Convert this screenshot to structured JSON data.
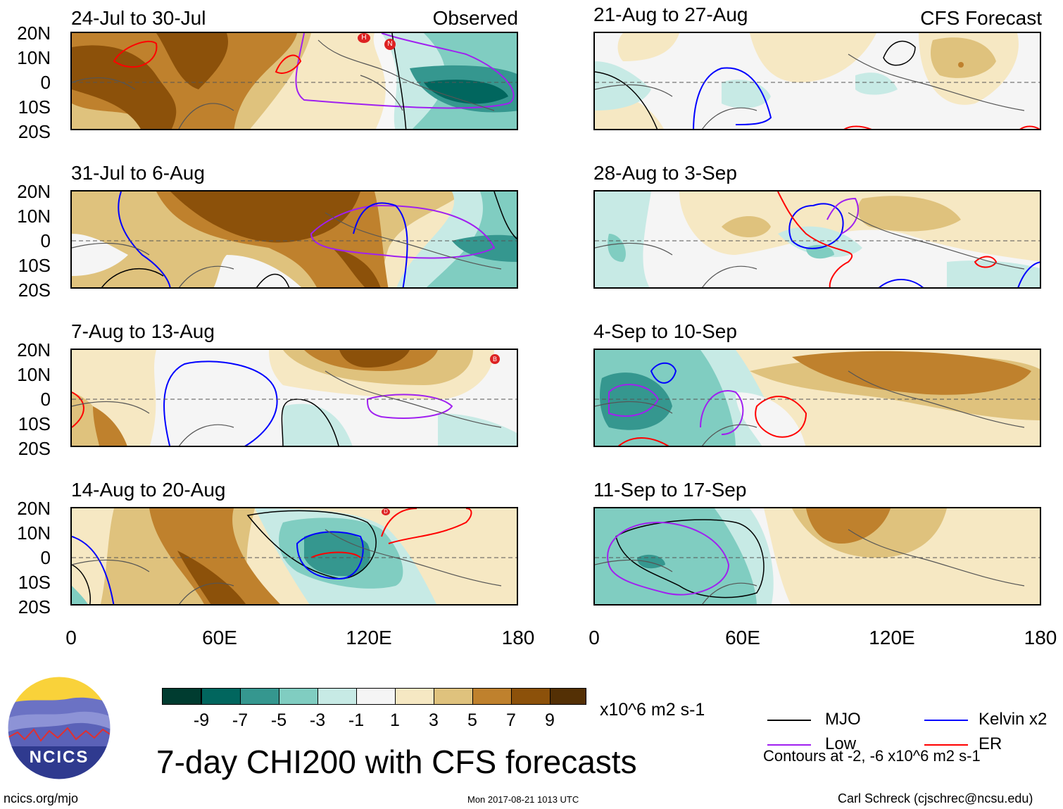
{
  "left_header": "Observed",
  "right_header": "CFS Forecast",
  "colors": {
    "c_m9": "#003c30",
    "c_m7": "#01665e",
    "c_m5": "#35978f",
    "c_m3": "#80cdc1",
    "c_m1": "#c7eae5",
    "c_0": "#f5f5f5",
    "c_1": "#f6e8c3",
    "c_3": "#dfc27d",
    "c_5": "#bf812d",
    "c_7": "#8c510a",
    "c_9": "#543005",
    "mjo": "#000000",
    "kelvin": "#0000ff",
    "low": "#a020f0",
    "er": "#ff0000",
    "coast": "#555555"
  },
  "panels": {
    "obs": [
      {
        "title": "24-Jul to 30-Jul"
      },
      {
        "title": "31-Jul to 6-Aug"
      },
      {
        "title": "7-Aug to 13-Aug"
      },
      {
        "title": "14-Aug to 20-Aug"
      }
    ],
    "fcst": [
      {
        "title": "21-Aug to 27-Aug"
      },
      {
        "title": "28-Aug to 3-Sep"
      },
      {
        "title": "4-Sep to 10-Sep"
      },
      {
        "title": "11-Sep to 17-Sep"
      }
    ]
  },
  "y_ticks": [
    "20N",
    "10N",
    "0",
    "10S",
    "20S"
  ],
  "x_ticks": [
    "0",
    "60E",
    "120E",
    "180"
  ],
  "colorbar": {
    "labels": [
      "-9",
      "-7",
      "-5",
      "-3",
      "-1",
      "1",
      "3",
      "5",
      "7",
      "9"
    ],
    "units": "x10^6 m2 s-1"
  },
  "legend": {
    "mjo": "MJO",
    "kelvin": "Kelvin x2",
    "low": "Low",
    "er": "ER",
    "contours_note": "Contours at -2, -6 x10^6 m2 s-1"
  },
  "main_title": "7-day CHI200 with CFS forecasts",
  "logo_text": "NCICS",
  "footer": {
    "url": "ncics.org/mjo",
    "timestamp": "Mon 2017-08-21 1013 UTC",
    "author": "Carl Schreck (cjschrec@ncsu.edu)"
  },
  "storm_markers": [
    {
      "panel": "obs-1",
      "letter": "H"
    },
    {
      "panel": "obs-1",
      "letter": "N"
    },
    {
      "panel": "obs-3",
      "letter": "B"
    },
    {
      "panel": "obs-4",
      "letter": "D"
    }
  ]
}
